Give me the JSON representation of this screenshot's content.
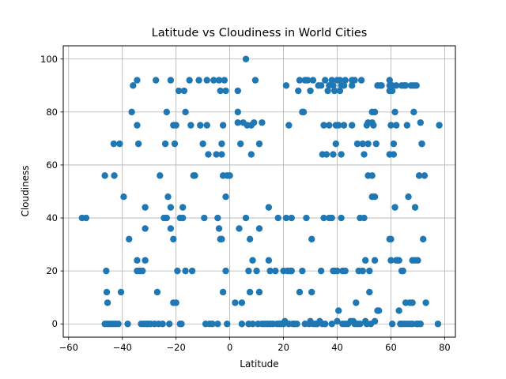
{
  "chart_data": {
    "type": "scatter",
    "title": "Latitude vs Cloudiness in World Cities",
    "xlabel": "Latitude",
    "ylabel": "Cloudiness",
    "xlim": [
      -62,
      84
    ],
    "ylim": [
      -5,
      105
    ],
    "xticks": [
      -60,
      -40,
      -20,
      0,
      20,
      40,
      60,
      80
    ],
    "yticks": [
      0,
      20,
      40,
      60,
      80,
      100
    ],
    "grid": true,
    "marker_color": "#1f77b4",
    "points": [
      [
        -55,
        40
      ],
      [
        -53.5,
        40
      ],
      [
        -46.5,
        56
      ],
      [
        -46,
        20
      ],
      [
        -45.8,
        12
      ],
      [
        -45.5,
        8
      ],
      [
        -46.5,
        0
      ],
      [
        -45.5,
        0
      ],
      [
        -44.5,
        0
      ],
      [
        -43.5,
        0
      ],
      [
        -43.2,
        68
      ],
      [
        -43,
        56
      ],
      [
        -42.5,
        0
      ],
      [
        -41.5,
        0
      ],
      [
        -41,
        68
      ],
      [
        -40.5,
        12
      ],
      [
        -39.5,
        48
      ],
      [
        -38,
        0
      ],
      [
        -37.5,
        32
      ],
      [
        -36,
        90
      ],
      [
        -36.5,
        80
      ],
      [
        -34.5,
        75
      ],
      [
        -34.5,
        92
      ],
      [
        -34.5,
        24
      ],
      [
        -34,
        68
      ],
      [
        -34.5,
        20
      ],
      [
        -33.5,
        20
      ],
      [
        -33,
        0
      ],
      [
        -32.5,
        20
      ],
      [
        -32,
        0
      ],
      [
        -31.5,
        44
      ],
      [
        -31.5,
        36
      ],
      [
        -31.5,
        24
      ],
      [
        -31,
        0
      ],
      [
        -30.5,
        0
      ],
      [
        -29.5,
        0
      ],
      [
        -28,
        0
      ],
      [
        -27.5,
        92
      ],
      [
        -27,
        12
      ],
      [
        -26.5,
        0
      ],
      [
        -26,
        56
      ],
      [
        -25,
        0
      ],
      [
        -24.5,
        40
      ],
      [
        -24,
        68
      ],
      [
        -23.5,
        80
      ],
      [
        -23,
        48
      ],
      [
        -23.5,
        40
      ],
      [
        -22.5,
        0
      ],
      [
        -22,
        92
      ],
      [
        -22,
        44
      ],
      [
        -22,
        36
      ],
      [
        -21,
        75
      ],
      [
        -21,
        32
      ],
      [
        -21,
        8
      ],
      [
        -20.5,
        68
      ],
      [
        -20,
        8
      ],
      [
        -20,
        75
      ],
      [
        -19.5,
        20
      ],
      [
        -19,
        88
      ],
      [
        -18.5,
        40
      ],
      [
        -18.5,
        0
      ],
      [
        -18,
        0
      ],
      [
        -17.5,
        44
      ],
      [
        -17.5,
        40
      ],
      [
        -17,
        88
      ],
      [
        -16.5,
        80
      ],
      [
        -16.5,
        20
      ],
      [
        -15,
        92
      ],
      [
        -14.5,
        75
      ],
      [
        -14,
        20
      ],
      [
        -13.5,
        56
      ],
      [
        -13,
        56
      ],
      [
        -11.5,
        92
      ],
      [
        -11,
        75
      ],
      [
        -10,
        68
      ],
      [
        -9.5,
        40
      ],
      [
        -9,
        0
      ],
      [
        -8.5,
        92
      ],
      [
        -8.5,
        75
      ],
      [
        -8,
        64
      ],
      [
        -7.5,
        0
      ],
      [
        -6.5,
        0
      ],
      [
        -6,
        92
      ],
      [
        -5,
        64
      ],
      [
        -4.5,
        40
      ],
      [
        -4.5,
        0
      ],
      [
        -4,
        92
      ],
      [
        -4,
        36
      ],
      [
        -3.5,
        32
      ],
      [
        -3,
        32
      ],
      [
        -3.5,
        88
      ],
      [
        -3,
        68
      ],
      [
        -3,
        64
      ],
      [
        -2.5,
        75
      ],
      [
        -2.5,
        56
      ],
      [
        -2.5,
        12
      ],
      [
        -2,
        92
      ],
      [
        -1.5,
        88
      ],
      [
        -1.5,
        48
      ],
      [
        -1.5,
        20
      ],
      [
        -1,
        56
      ],
      [
        0,
        56
      ],
      [
        -1,
        0
      ],
      [
        2,
        8
      ],
      [
        3,
        76
      ],
      [
        3,
        80
      ],
      [
        3,
        88
      ],
      [
        3.5,
        36
      ],
      [
        4,
        68
      ],
      [
        4.5,
        8
      ],
      [
        4.5,
        0
      ],
      [
        5,
        76
      ],
      [
        6,
        100
      ],
      [
        6,
        40
      ],
      [
        6.5,
        75
      ],
      [
        7,
        20
      ],
      [
        7,
        0
      ],
      [
        7.5,
        12
      ],
      [
        7.5,
        32
      ],
      [
        8,
        75
      ],
      [
        8,
        64
      ],
      [
        8.5,
        24
      ],
      [
        8.5,
        0
      ],
      [
        9,
        76
      ],
      [
        9.5,
        92
      ],
      [
        10,
        20
      ],
      [
        10.5,
        0
      ],
      [
        11,
        36
      ],
      [
        11,
        68
      ],
      [
        11,
        12
      ],
      [
        12,
        76
      ],
      [
        12,
        0
      ],
      [
        13,
        0
      ],
      [
        14,
        0
      ],
      [
        14.5,
        44
      ],
      [
        14.5,
        24
      ],
      [
        15,
        20
      ],
      [
        15,
        0
      ],
      [
        16,
        0
      ],
      [
        17,
        20
      ],
      [
        17.5,
        0
      ],
      [
        18,
        40
      ],
      [
        18.5,
        0
      ],
      [
        19,
        0
      ],
      [
        20,
        20
      ],
      [
        20,
        0
      ],
      [
        20.5,
        1
      ],
      [
        21,
        90
      ],
      [
        21,
        40
      ],
      [
        21.5,
        20
      ],
      [
        22,
        75
      ],
      [
        22,
        0
      ],
      [
        22.5,
        20
      ],
      [
        23,
        40
      ],
      [
        23,
        20
      ],
      [
        23.5,
        0
      ],
      [
        24,
        0
      ],
      [
        25,
        0
      ],
      [
        25.5,
        88
      ],
      [
        26,
        92
      ],
      [
        26,
        12
      ],
      [
        27,
        80
      ],
      [
        27,
        20
      ],
      [
        27.5,
        80
      ],
      [
        28,
        92
      ],
      [
        28,
        0
      ],
      [
        28.5,
        40
      ],
      [
        29,
        92
      ],
      [
        29.5,
        0
      ],
      [
        30,
        1
      ],
      [
        30,
        88
      ],
      [
        30.5,
        32
      ],
      [
        30.5,
        12
      ],
      [
        31,
        92
      ],
      [
        31,
        0
      ],
      [
        32,
        0
      ],
      [
        32.5,
        0
      ],
      [
        33,
        90
      ],
      [
        33.5,
        1
      ],
      [
        34,
        90
      ],
      [
        34,
        20
      ],
      [
        34.5,
        64
      ],
      [
        34.5,
        0
      ],
      [
        35,
        40
      ],
      [
        35,
        75
      ],
      [
        35.5,
        92
      ],
      [
        35.5,
        0
      ],
      [
        36,
        64
      ],
      [
        36.5,
        88
      ],
      [
        37,
        90
      ],
      [
        37,
        40
      ],
      [
        37,
        75
      ],
      [
        38,
        0
      ],
      [
        38,
        40
      ],
      [
        38,
        92
      ],
      [
        38.5,
        90
      ],
      [
        38.5,
        64
      ],
      [
        38.5,
        20
      ],
      [
        39,
        88
      ],
      [
        39,
        20
      ],
      [
        39.5,
        75
      ],
      [
        39.5,
        68
      ],
      [
        40,
        92
      ],
      [
        40,
        20
      ],
      [
        40,
        1
      ],
      [
        40.5,
        5
      ],
      [
        40.5,
        75
      ],
      [
        41,
        92
      ],
      [
        41,
        88
      ],
      [
        41.5,
        90
      ],
      [
        41.5,
        64
      ],
      [
        41.5,
        40
      ],
      [
        42,
        20
      ],
      [
        42,
        0
      ],
      [
        42.5,
        90
      ],
      [
        42.5,
        75
      ],
      [
        43,
        92
      ],
      [
        43,
        20
      ],
      [
        43,
        0
      ],
      [
        44,
        0
      ],
      [
        45,
        1
      ],
      [
        45.5,
        92
      ],
      [
        45.5,
        90
      ],
      [
        45.5,
        75
      ],
      [
        46,
        1
      ],
      [
        46.5,
        92
      ],
      [
        46.5,
        0
      ],
      [
        47,
        8
      ],
      [
        47.5,
        68
      ],
      [
        47.5,
        0
      ],
      [
        48,
        20
      ],
      [
        48.5,
        40
      ],
      [
        48.5,
        0
      ],
      [
        49,
        92
      ],
      [
        49.5,
        68
      ],
      [
        49.5,
        20
      ],
      [
        50,
        64
      ],
      [
        50,
        40
      ],
      [
        50.5,
        24
      ],
      [
        50.5,
        1
      ],
      [
        51,
        75
      ],
      [
        51,
        0
      ],
      [
        51.5,
        76
      ],
      [
        51.5,
        68
      ],
      [
        51.5,
        56
      ],
      [
        52,
        20
      ],
      [
        52,
        12
      ],
      [
        52.5,
        0
      ],
      [
        53,
        80
      ],
      [
        53,
        76
      ],
      [
        53,
        56
      ],
      [
        53,
        48
      ],
      [
        53.5,
        75
      ],
      [
        54,
        80
      ],
      [
        54,
        24
      ],
      [
        54,
        48
      ],
      [
        54,
        1
      ],
      [
        54.5,
        68
      ],
      [
        55,
        90
      ],
      [
        55,
        5
      ],
      [
        55.5,
        5
      ],
      [
        56,
        90
      ],
      [
        56.5,
        90
      ],
      [
        59.5,
        92
      ],
      [
        59.5,
        90
      ],
      [
        59.5,
        88
      ],
      [
        59.5,
        64
      ],
      [
        59.5,
        32
      ],
      [
        60,
        24
      ],
      [
        60,
        32
      ],
      [
        60,
        75
      ],
      [
        60.5,
        90
      ],
      [
        60.5,
        88
      ],
      [
        60.5,
        0
      ],
      [
        61,
        68
      ],
      [
        61,
        64
      ],
      [
        61.5,
        44
      ],
      [
        61.5,
        80
      ],
      [
        62,
        90
      ],
      [
        62,
        24
      ],
      [
        62,
        75
      ],
      [
        62.5,
        24
      ],
      [
        63,
        24
      ],
      [
        63,
        5
      ],
      [
        63.5,
        0
      ],
      [
        64,
        20
      ],
      [
        64,
        90
      ],
      [
        64,
        0
      ],
      [
        64.5,
        20
      ],
      [
        65,
        90
      ],
      [
        65,
        0
      ],
      [
        65.5,
        90
      ],
      [
        65.5,
        8
      ],
      [
        66,
        0
      ],
      [
        66,
        75
      ],
      [
        66.5,
        48
      ],
      [
        67,
        8
      ],
      [
        67,
        0
      ],
      [
        67.5,
        90
      ],
      [
        68,
        24
      ],
      [
        68,
        8
      ],
      [
        68,
        0
      ],
      [
        68.5,
        80
      ],
      [
        68.5,
        90
      ],
      [
        69,
        44
      ],
      [
        69,
        24
      ],
      [
        69.5,
        90
      ],
      [
        69.5,
        0
      ],
      [
        70,
        24
      ],
      [
        70,
        0
      ],
      [
        70.5,
        56
      ],
      [
        71,
        0
      ],
      [
        71,
        76
      ],
      [
        71.5,
        68
      ],
      [
        71.5,
        68
      ],
      [
        72,
        32
      ],
      [
        72.5,
        56
      ],
      [
        73,
        8
      ],
      [
        77.5,
        0
      ],
      [
        78,
        75
      ]
    ]
  }
}
